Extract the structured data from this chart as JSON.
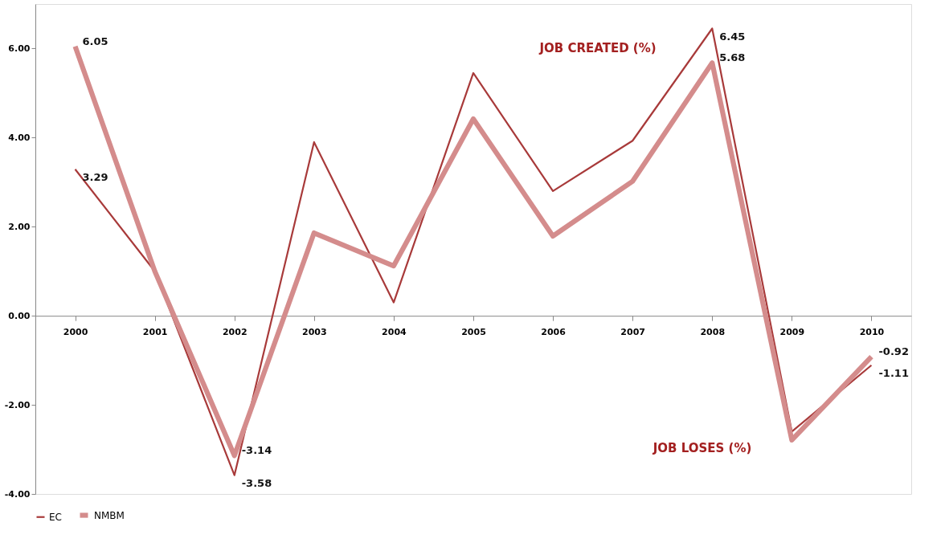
{
  "chart_data": {
    "type": "line",
    "categories": [
      "2000",
      "2001",
      "2002",
      "2003",
      "2004",
      "2005",
      "2006",
      "2007",
      "2008",
      "2009",
      "2010"
    ],
    "series": [
      {
        "name": "EC",
        "color": "#a83a3a",
        "values": [
          3.29,
          1.0,
          -3.58,
          3.9,
          0.3,
          5.45,
          2.8,
          3.93,
          6.45,
          -2.6,
          -1.11
        ],
        "value_labels": [
          "3.29",
          null,
          "-3.58",
          null,
          null,
          null,
          null,
          null,
          "6.45",
          null,
          "-1.11"
        ]
      },
      {
        "name": "NMBM",
        "color": "#d48c8c",
        "values": [
          6.05,
          1.0,
          -3.14,
          1.86,
          1.12,
          4.42,
          1.79,
          3.02,
          5.68,
          -2.79,
          -0.92
        ],
        "value_labels": [
          "6.05",
          null,
          "-3.14",
          null,
          null,
          null,
          null,
          null,
          "5.68",
          null,
          "-0.92"
        ]
      }
    ],
    "ylim": [
      -4,
      7
    ],
    "yticks": [
      {
        "value": -4,
        "label": "-4.00"
      },
      {
        "value": -2,
        "label": "-2.00"
      },
      {
        "value": 0,
        "label": "0.00"
      },
      {
        "value": 2,
        "label": "2.00"
      },
      {
        "value": 4,
        "label": "4.00"
      },
      {
        "value": 6,
        "label": "6.00"
      }
    ],
    "annotations": [
      "JOB CREATED (%)",
      "JOB LOSES (%)"
    ],
    "legend": "bottom",
    "grid": false,
    "marker": "none",
    "line_style": "solid"
  }
}
